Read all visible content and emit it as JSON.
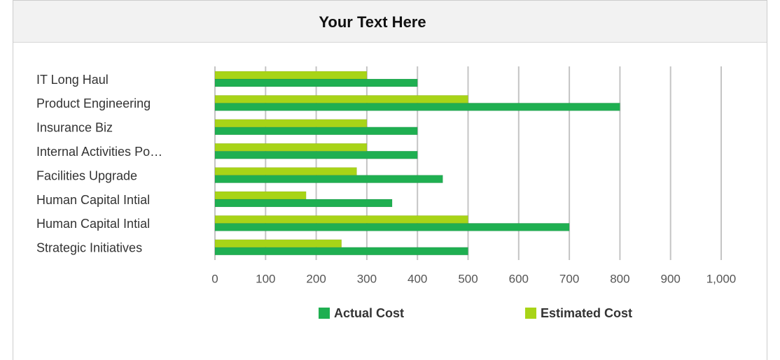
{
  "chart_data": {
    "type": "hbar",
    "title": "Your Text Here",
    "categories": [
      "IT Long Haul",
      "Product Engineering",
      "Insurance Biz",
      "Internal Activities Po…",
      "Facilities Upgrade",
      "Human Capital Intial",
      "Human Capital Intial",
      "Strategic Initiatives"
    ],
    "series": [
      {
        "name": "Actual Cost",
        "color": "#1faf51",
        "values": [
          400,
          800,
          400,
          400,
          450,
          350,
          700,
          500
        ]
      },
      {
        "name": "Estimated Cost",
        "color": "#a8d417",
        "values": [
          300,
          500,
          300,
          300,
          280,
          180,
          500,
          250
        ]
      }
    ],
    "xlim": [
      0,
      1000
    ],
    "xticks": [
      0,
      100,
      200,
      300,
      400,
      500,
      600,
      700,
      800,
      900,
      {
        "value": 1000,
        "label": "1,000"
      }
    ],
    "grid": true,
    "legend": "bottom"
  }
}
